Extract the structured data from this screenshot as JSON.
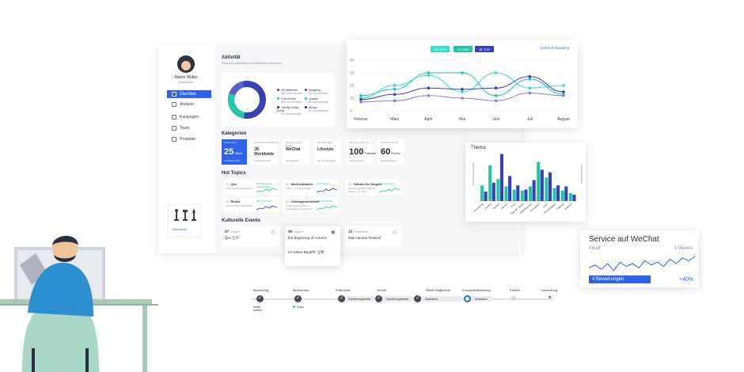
{
  "user": {
    "name": "Martin Müller",
    "role": "Designerin"
  },
  "nav": [
    {
      "label": "Überblick",
      "active": true
    },
    {
      "label": "Analyse"
    },
    {
      "label": "Kampagne"
    },
    {
      "label": "Team"
    },
    {
      "label": "Produkte"
    }
  ],
  "sidebar_widget": {
    "label": "Standmose"
  },
  "activity": {
    "title": "Aktivität",
    "subtitle": "Verbrauchsaktivität in verschiedenen Zeiträumen",
    "legend": [
      {
        "label": "JD Weltbörde",
        "sub": "JDE Kommentare",
        "color": "#3b3fb5"
      },
      {
        "label": "Food Grüße",
        "sub": "EIB Kommentare",
        "color": "#22c7a9"
      },
      {
        "label": "Liebdig Global Dunst",
        "sub": "SU Kommentare",
        "color": "#1f2d5a"
      },
      {
        "label": "Dongding",
        "sub": "40 Kommentare",
        "color": "#3b3fb5"
      },
      {
        "label": "Quarter",
        "sub": "80 Kommentare",
        "color": "#22c7a9"
      },
      {
        "label": "Mongo",
        "sub": "90 Kommentare",
        "color": "#1f2d5a"
      }
    ]
  },
  "categories": {
    "title": "Kategorien",
    "items": [
      {
        "top": "Markenwert",
        "main": "25",
        "suffix": "Stück",
        "bottom": "Lieblingsmarke",
        "style": "blue"
      },
      {
        "top": "Interkulturbeobachtung",
        "main": "JD Worldwide",
        "bottom": "Shoppingmarke",
        "style": "text"
      },
      {
        "top": "Wichtige Social Media",
        "main": "WeChat",
        "bottom": "Medienplatz",
        "style": "text"
      },
      {
        "top": "Wichtige Tags",
        "main": "Lifestyle",
        "bottom": "Top Social Media",
        "style": "text"
      },
      {
        "top": "Wichtige Influencer",
        "main": "100",
        "suffix": "Follower",
        "bottom": "Influencerzahl",
        "style": "num"
      },
      {
        "top": "Produktsuchwort",
        "main": "60",
        "suffix": "Suche",
        "bottom": "Bedarfsthemen",
        "style": "num"
      }
    ]
  },
  "hot_topics": {
    "title": "Hot Topics",
    "items": [
      {
        "n": "01",
        "name": "Qixi",
        "desc": "Chinesischer Valentinstag",
        "tag": "200 Ereignisse Valentinstag"
      },
      {
        "n": "02",
        "name": "Weiß-Kaltwelle",
        "desc": "Leben im schöner Kälte",
        "tag": "100 Produkt"
      },
      {
        "n": "03",
        "name": "Gründe für Singles",
        "desc": "Erinnerung aller Stufen für Singles, von allen",
        "tag": "200 Ereignisse"
      },
      {
        "n": "04",
        "name": "Reuhe",
        "desc": "Chinesischer Valentinstag",
        "tag": "200 Ereignisse"
      },
      {
        "n": "05",
        "name": "Liebesgeschichten",
        "desc": "Lieblingsgeschichten in Geschichten beschreiben",
        "tag": "200 Ereignisse"
      }
    ]
  },
  "events": {
    "title": "Kulturelle Events",
    "items": [
      {
        "day": "07",
        "month": "August",
        "title": "Qixi 七夕"
      },
      {
        "day": "08",
        "month": "August",
        "title": "the Beginning of Autumn",
        "title2": "24 solare Begriffe 立秋"
      },
      {
        "day": "13",
        "month": "September",
        "title": "Mid-Autumn Festival"
      }
    ]
  },
  "line_chart_controls": {
    "pills": [
      {
        "label": "JW 3070",
        "color": "#2ee0c8"
      },
      {
        "label": "JB 3390",
        "color": "#1fc7a8"
      },
      {
        "label": "JB 7192",
        "color": "#3b3fb5"
      }
    ],
    "period": "Letzte 6 Monate"
  },
  "bar_chart": {
    "title": "Thema",
    "categories": [
      "Hochwertig",
      "Lifestyle",
      "Qualität",
      "Service",
      "Preis",
      "Tage der Marke",
      "Digitalisierung",
      "Gesundheit",
      "Luxus",
      "Nachhaltigkeit",
      "Flagship",
      "Angebot"
    ],
    "left_axis": "Anteil gesamte Anzahl",
    "right_axis": "Anteil Kommentar"
  },
  "service": {
    "title": "Service auf WeChat",
    "label": "Inhalt",
    "period": "3 Weeks",
    "reviews": "4 Bewertungen",
    "change": "+40%"
  },
  "stepper": {
    "steps": [
      {
        "label": "Bewertung",
        "state": "done"
      },
      {
        "label": "Benchmark",
        "state": "done"
      },
      {
        "label": "Potenziale",
        "state": "done"
      },
      {
        "label": "Verzeit",
        "state": "done"
      },
      {
        "label": "Markt Vergleicher",
        "state": "done"
      },
      {
        "label": "Konzeptentwicklung",
        "state": "active"
      },
      {
        "label": "Partner",
        "state": "todo"
      },
      {
        "label": "Umsetzung",
        "state": "todo"
      }
    ],
    "pill_labels": [
      "Darstellungsweise",
      "Darstellungsweise",
      "Illustration",
      "Illustration"
    ],
    "under_1": "Inhalt starten",
    "under_2": "Suger"
  },
  "chart_data": [
    {
      "type": "line",
      "categories": [
        "Februar",
        "März",
        "April",
        "Mai",
        "Juni",
        "Juli",
        "August"
      ],
      "ylim": [
        0,
        40
      ],
      "yticks": [
        0,
        10,
        20,
        30,
        40
      ],
      "series": [
        {
          "name": "JW 3070",
          "color": "#2ee0c8",
          "values": [
            10,
            20,
            28,
            15,
            30,
            18,
            20
          ]
        },
        {
          "name": "JB 3390",
          "color": "#1fc7a8",
          "values": [
            12,
            17,
            30,
            30,
            12,
            25,
            13
          ]
        },
        {
          "name": "JB 7192",
          "color": "#3b3fb5",
          "values": [
            9,
            13,
            18,
            17,
            18,
            27,
            15
          ]
        },
        {
          "name": "",
          "color": "#8a7be0",
          "values": [
            7,
            8,
            12,
            10,
            8,
            14,
            12
          ]
        }
      ]
    },
    {
      "type": "bar",
      "categories": [
        "Hochwertig",
        "Lifestyle",
        "Qualität",
        "Service",
        "Preis",
        "Tage der Marke",
        "Digitalisierung",
        "Gesundheit",
        "Luxus",
        "Nachhaltigkeit",
        "Flagship",
        "Angebot"
      ],
      "ylim": [
        0,
        100
      ],
      "series": [
        {
          "name": "",
          "color": "#1fc7a8",
          "values": [
            30,
            68,
            42,
            28,
            22,
            20,
            28,
            75,
            45,
            25,
            20,
            15
          ]
        },
        {
          "name": "",
          "color": "#3b3fb5",
          "values": [
            18,
            35,
            90,
            48,
            30,
            22,
            40,
            60,
            55,
            30,
            28,
            12
          ]
        }
      ]
    },
    {
      "type": "line",
      "title": "Service auf WeChat",
      "series": [
        {
          "name": "",
          "color": "#2e63ea",
          "values": [
            12,
            14,
            11,
            15,
            10,
            16,
            13,
            15,
            12,
            17,
            14,
            16,
            13,
            18,
            15,
            19,
            17,
            20
          ]
        }
      ]
    }
  ]
}
